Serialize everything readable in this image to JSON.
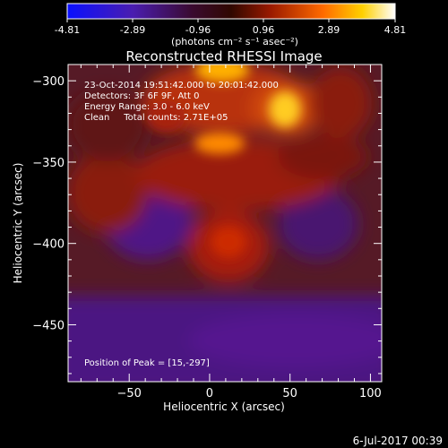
{
  "colorbar": {
    "ticks": [
      "-4.81",
      "-2.89",
      "-0.96",
      "0.96",
      "2.89",
      "4.81"
    ],
    "unit_label": "(photons cm⁻² s⁻¹ asec⁻²)"
  },
  "chart_data": {
    "type": "heatmap",
    "title": "Reconstructed RHESSI Image",
    "xlabel": "Heliocentric X (arcsec)",
    "ylabel": "Heliocentric Y (arcsec)",
    "xlim": [
      -88,
      107
    ],
    "ylim": [
      -485,
      -290
    ],
    "xticks": [
      "−50",
      "0",
      "50",
      "100"
    ],
    "xtick_values": [
      -50,
      0,
      50,
      100
    ],
    "yticks": [
      "−300",
      "−350",
      "−400",
      "−450"
    ],
    "ytick_values": [
      -300,
      -350,
      -400,
      -450
    ],
    "zlim": [
      -4.81,
      4.81
    ],
    "colormap": "hot (black-blue-purple-red-orange-yellow-white)",
    "annotations": [
      "23-Oct-2014 19:51:42.000 to 20:01:42.000",
      "Detectors: 3F 6F 9F, Att 0",
      "Energy Range: 3.0 - 6.0 keV",
      "Clean     Total counts: 2.71E+05"
    ],
    "peak_label": "Position of Peak = [15,-297]",
    "peak": [
      15,
      -297
    ]
  },
  "timestamp": "6-Jul-2017 00:39"
}
